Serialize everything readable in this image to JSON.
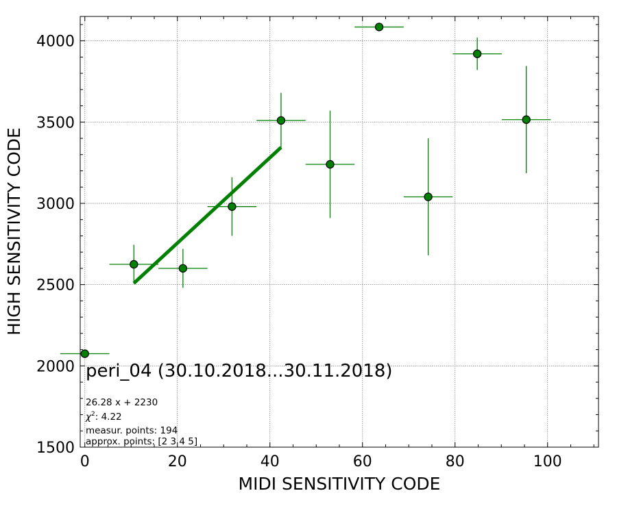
{
  "chart_data": {
    "type": "scatter",
    "title": "peri_04 (30.10.2018...30.11.2018)",
    "xlabel": "MIDI SENSITIVITY CODE",
    "ylabel": "HIGH SENSITIVITY CODE",
    "xlim": [
      -1,
      111
    ],
    "ylim": [
      1500,
      4150
    ],
    "xticks": [
      0,
      20,
      40,
      60,
      80,
      100
    ],
    "yticks": [
      1500,
      2000,
      2500,
      3000,
      3500,
      4000
    ],
    "grid": true,
    "colors": {
      "marker": "#008000",
      "marker_edge": "#000000",
      "fit": "#008000",
      "grid": "#808080"
    },
    "points": [
      {
        "x": 0.0,
        "y": 2075,
        "xerr": 5.3,
        "yerr": 0
      },
      {
        "x": 10.6,
        "y": 2625,
        "xerr": 5.3,
        "yerr": 120
      },
      {
        "x": 21.2,
        "y": 2600,
        "xerr": 5.3,
        "yerr": 120
      },
      {
        "x": 31.8,
        "y": 2980,
        "xerr": 5.3,
        "yerr": 180
      },
      {
        "x": 42.4,
        "y": 3510,
        "xerr": 5.3,
        "yerr": 170
      },
      {
        "x": 53.0,
        "y": 3240,
        "xerr": 5.3,
        "yerr": 330
      },
      {
        "x": 63.6,
        "y": 4085,
        "xerr": 5.3,
        "yerr": 0
      },
      {
        "x": 74.2,
        "y": 3040,
        "xerr": 5.3,
        "yerr": 360
      },
      {
        "x": 84.8,
        "y": 3920,
        "xerr": 5.3,
        "yerr": 100
      },
      {
        "x": 95.4,
        "y": 3515,
        "xerr": 5.3,
        "yerr": 330
      }
    ],
    "fit": {
      "slope": 26.28,
      "intercept": 2230,
      "x_range": [
        10.6,
        42.4
      ]
    },
    "annotations": {
      "fit_label": "26.28 x + 2230",
      "chi2_label": ": 4.22",
      "measur_points": "measur. points: 194",
      "approx_points": "approx. points: [2 3 4 5]"
    }
  }
}
